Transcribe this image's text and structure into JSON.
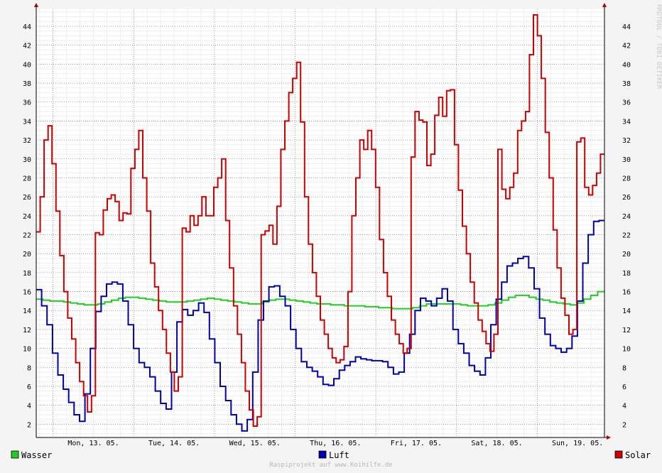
{
  "chart_data": {
    "type": "line",
    "y_ticks": [
      2,
      4,
      6,
      8,
      10,
      12,
      14,
      16,
      18,
      20,
      22,
      24,
      26,
      28,
      30,
      32,
      34,
      36,
      38,
      40,
      42,
      44
    ],
    "ylim": [
      0.6,
      45.8
    ],
    "x_day_labels": [
      "Mon, 13. 05.",
      "Tue, 14. 05.",
      "Wed, 15. 05.",
      "Thu, 16. 05.",
      "Fri, 17. 05.",
      "Sat, 18. 05.",
      "Sun, 19. 05."
    ],
    "x_step_hours": 4,
    "x_start": "2013-05-12 19:00",
    "x_end": "2013-05-19 20:00",
    "grid": true,
    "legend_position": "bottom",
    "series": [
      {
        "name": "Wasser",
        "color": "#22cc22",
        "values": [
          15.2,
          15.1,
          15.0,
          15.0,
          14.9,
          14.8,
          14.7,
          14.6,
          14.6,
          14.7,
          14.9,
          15.1,
          15.3,
          15.4,
          15.4,
          15.3,
          15.2,
          15.1,
          15.0,
          14.9,
          14.9,
          14.9,
          15.0,
          15.1,
          15.2,
          15.3,
          15.2,
          15.1,
          15.0,
          14.9,
          14.8,
          14.7,
          14.7,
          14.9,
          15.1,
          15.2,
          15.2,
          15.1,
          15.0,
          14.9,
          14.8,
          14.7,
          14.7,
          14.6,
          14.6,
          14.5,
          14.5,
          14.5,
          14.4,
          14.4,
          14.3,
          14.3,
          14.2,
          14.2,
          14.2,
          14.3,
          14.5,
          14.7,
          14.7,
          14.7,
          14.7,
          14.7,
          14.6,
          14.5,
          14.5,
          14.5,
          14.6,
          14.8,
          15.1,
          15.4,
          15.6,
          15.6,
          15.4,
          15.2,
          15.1,
          14.9,
          14.8,
          14.7,
          14.6,
          14.8,
          15.2,
          15.6,
          16.0
        ]
      },
      {
        "name": "Luft",
        "color": "#0000aa",
        "values": [
          16.2,
          14.5,
          12.5,
          9.5,
          7.2,
          5.7,
          4.3,
          3.0,
          2.3,
          5.2,
          10.0,
          13.9,
          15.5,
          16.8,
          17.0,
          16.8,
          15.0,
          12.5,
          10.0,
          8.5,
          8.0,
          7.0,
          5.5,
          4.2,
          3.6,
          7.5,
          12.8,
          14.1,
          13.5,
          14.0,
          14.8,
          13.8,
          11.0,
          8.5,
          6.0,
          4.5,
          3.0,
          2.0,
          1.3,
          2.5,
          7.5,
          13.0,
          15.0,
          16.5,
          16.6,
          15.5,
          14.5,
          12.0,
          10.0,
          8.6,
          8.0,
          7.6,
          7.0,
          6.2,
          6.1,
          6.8,
          7.7,
          8.2,
          8.6,
          9.1,
          8.9,
          8.8,
          8.7,
          8.7,
          8.6,
          8.0,
          7.3,
          7.5,
          9.5,
          11.5,
          14.0,
          15.3,
          15.0,
          14.5,
          15.3,
          16.3,
          15.0,
          12.0,
          10.5,
          9.5,
          8.2,
          7.6,
          7.2,
          9.0,
          12.5,
          15.2,
          17.0,
          18.7,
          19.0,
          19.5,
          19.7,
          18.5,
          16.3,
          13.2,
          11.5,
          10.3,
          10.0,
          9.6,
          10.0,
          11.3,
          15.0,
          19.0,
          22.0,
          23.4,
          23.5
        ]
      },
      {
        "name": "Solar",
        "color": "#cc0000",
        "values": [
          22.3,
          26.0,
          32.0,
          33.5,
          29.5,
          24.5,
          19.8,
          16.0,
          13.2,
          11.0,
          8.5,
          6.5,
          5.0,
          3.3,
          5.0,
          22.2,
          22.0,
          24.6,
          25.8,
          26.2,
          25.5,
          23.5,
          24.3,
          24.2,
          29.0,
          31.0,
          33.0,
          28.0,
          24.5,
          19.0,
          16.5,
          14.0,
          12.0,
          9.5,
          7.5,
          5.5,
          7.0,
          22.7,
          22.3,
          24.0,
          23.0,
          24.0,
          26.0,
          24.0,
          24.0,
          27.0,
          28.0,
          30.0,
          23.5,
          18.5,
          14.5,
          11.5,
          8.5,
          5.5,
          3.5,
          1.8,
          2.8,
          22.0,
          22.4,
          23.0,
          21.0,
          25.0,
          31.0,
          34.0,
          37.0,
          38.5,
          40.2,
          33.9,
          26.0,
          21.0,
          18.0,
          15.5,
          13.0,
          11.5,
          10.0,
          9.0,
          8.5,
          8.8,
          10.2,
          16.0,
          24.0,
          28.0,
          32.0,
          31.0,
          33.0,
          31.0,
          27.0,
          21.5,
          18.0,
          15.5,
          13.0,
          11.5,
          10.5,
          9.5,
          10.0,
          30.2,
          35.0,
          34.1,
          33.9,
          29.3,
          30.5,
          34.6,
          36.5,
          34.5,
          37.2,
          37.3,
          31.5,
          26.7,
          22.9,
          20.0,
          17.0,
          14.8,
          13.0,
          11.8,
          10.5,
          9.7,
          11.5,
          31.0,
          26.8,
          25.8,
          27.0,
          28.5,
          33.0,
          34.0,
          35.0,
          41.0,
          45.2,
          43.0,
          38.5,
          32.8,
          28.0,
          22.5,
          18.5,
          15.3,
          13.5,
          11.5,
          12.0,
          31.8,
          32.2,
          27.0,
          26.2,
          27.2,
          28.5,
          30.5
        ]
      }
    ]
  },
  "watermark": "RRDTOOL / TOBI OETIKER",
  "footer": "Raspiprojekt auf www.Koihilfe.de"
}
